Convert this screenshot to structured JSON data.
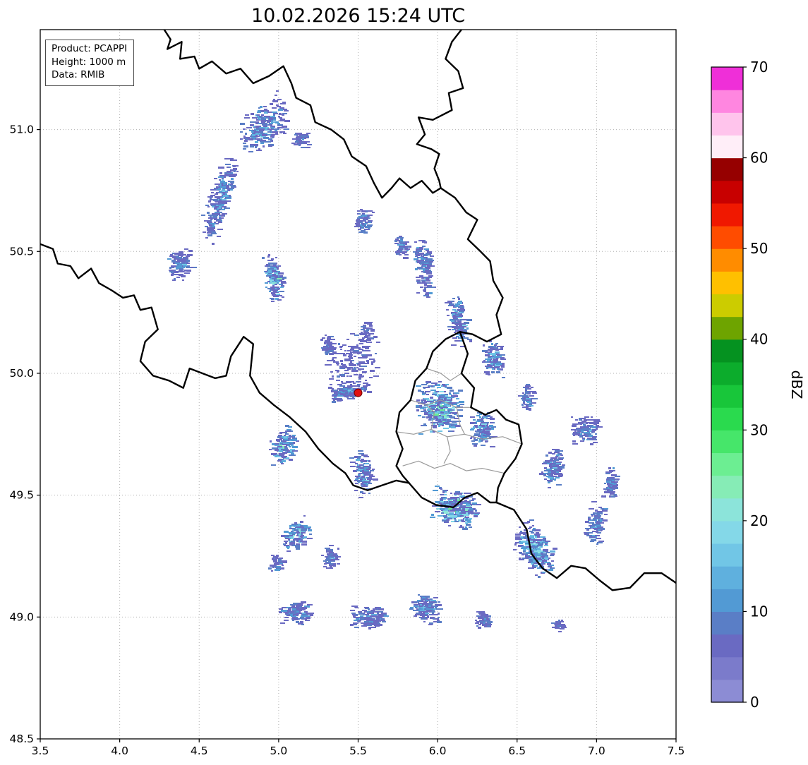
{
  "title": "10.02.2026 15:24 UTC",
  "info_box": {
    "product": "Product: PCAPPI",
    "height": "Height: 1000 m",
    "data": "Data: RMIB"
  },
  "chart_data": {
    "type": "heatmap",
    "title": "10.02.2026 15:24 UTC",
    "xlabel": "",
    "ylabel": "",
    "grid": true,
    "x_axis": {
      "ticks": [
        3.5,
        4.0,
        4.5,
        5.0,
        5.5,
        6.0,
        6.5,
        7.0,
        7.5
      ],
      "range": [
        3.5,
        7.5
      ]
    },
    "y_axis": {
      "ticks": [
        48.5,
        49.0,
        49.5,
        50.0,
        50.5,
        51.0
      ],
      "range": [
        48.5,
        51.41
      ]
    },
    "colorbar": {
      "label": "dBZ",
      "ticks": [
        0,
        10,
        20,
        30,
        40,
        50,
        60,
        70
      ],
      "vmin": 0,
      "vmax": 70,
      "step": 2.5,
      "colors": [
        "#8c8cd4",
        "#7b7bcb",
        "#6a6ac2",
        "#5a7ec6",
        "#529ad4",
        "#5fb0de",
        "#71c6e6",
        "#84d8e8",
        "#8ce4da",
        "#86ecb6",
        "#6cee92",
        "#46e66a",
        "#2ada4e",
        "#18c63a",
        "#0cac2c",
        "#059220",
        "#6ea400",
        "#cccc00",
        "#ffc000",
        "#ff8c00",
        "#ff4c00",
        "#f01800",
        "#c80000",
        "#960000",
        "#ffeef8",
        "#ffc4ec",
        "#ff86e0",
        "#ef2fd8"
      ]
    },
    "radar_site": {
      "lon": 5.5,
      "lat": 49.92,
      "marker_color": "#e01010"
    },
    "borders": {
      "country": [
        [
          [
            3.5,
            50.53
          ],
          [
            3.58,
            50.51
          ],
          [
            3.61,
            50.45
          ],
          [
            3.69,
            50.44
          ],
          [
            3.74,
            50.39
          ],
          [
            3.82,
            50.43
          ],
          [
            3.87,
            50.37
          ],
          [
            3.95,
            50.34
          ],
          [
            4.02,
            50.31
          ],
          [
            4.09,
            50.32
          ],
          [
            4.13,
            50.26
          ],
          [
            4.2,
            50.27
          ],
          [
            4.24,
            50.18
          ],
          [
            4.16,
            50.13
          ],
          [
            4.13,
            50.05
          ],
          [
            4.21,
            49.99
          ],
          [
            4.31,
            49.97
          ],
          [
            4.4,
            49.94
          ],
          [
            4.44,
            50.02
          ],
          [
            4.52,
            50.0
          ],
          [
            4.6,
            49.98
          ],
          [
            4.67,
            49.99
          ],
          [
            4.7,
            50.07
          ],
          [
            4.78,
            50.15
          ],
          [
            4.84,
            50.12
          ],
          [
            4.82,
            49.99
          ],
          [
            4.88,
            49.92
          ],
          [
            4.97,
            49.87
          ],
          [
            5.07,
            49.82
          ],
          [
            5.17,
            49.76
          ],
          [
            5.25,
            49.69
          ],
          [
            5.34,
            49.63
          ],
          [
            5.42,
            49.59
          ],
          [
            5.47,
            49.54
          ],
          [
            5.56,
            49.52
          ],
          [
            5.65,
            49.54
          ],
          [
            5.74,
            49.56
          ],
          [
            5.82,
            49.55
          ]
        ],
        [
          [
            5.82,
            49.55
          ],
          [
            5.9,
            49.49
          ],
          [
            5.99,
            49.46
          ],
          [
            6.1,
            49.45
          ],
          [
            6.17,
            49.49
          ],
          [
            6.25,
            49.51
          ],
          [
            6.33,
            49.47
          ],
          [
            6.37,
            49.47
          ]
        ],
        [
          [
            6.37,
            49.47
          ],
          [
            6.48,
            49.44
          ],
          [
            6.56,
            49.36
          ],
          [
            6.59,
            49.26
          ],
          [
            6.66,
            49.2
          ],
          [
            6.75,
            49.16
          ],
          [
            6.84,
            49.21
          ],
          [
            6.93,
            49.2
          ],
          [
            7.02,
            49.15
          ],
          [
            7.1,
            49.11
          ],
          [
            7.21,
            49.12
          ],
          [
            7.3,
            49.18
          ],
          [
            7.41,
            49.18
          ],
          [
            7.5,
            49.14
          ]
        ],
        [
          [
            4.28,
            51.41
          ],
          [
            4.32,
            51.37
          ],
          [
            4.3,
            51.33
          ],
          [
            4.39,
            51.36
          ],
          [
            4.38,
            51.29
          ],
          [
            4.47,
            51.3
          ],
          [
            4.5,
            51.25
          ],
          [
            4.58,
            51.28
          ],
          [
            4.67,
            51.23
          ],
          [
            4.76,
            51.25
          ],
          [
            4.84,
            51.19
          ],
          [
            4.94,
            51.22
          ],
          [
            5.03,
            51.26
          ],
          [
            5.08,
            51.19
          ],
          [
            5.11,
            51.13
          ],
          [
            5.2,
            51.1
          ],
          [
            5.23,
            51.03
          ],
          [
            5.33,
            51.0
          ],
          [
            5.41,
            50.96
          ],
          [
            5.46,
            50.89
          ],
          [
            5.55,
            50.85
          ],
          [
            5.6,
            50.78
          ],
          [
            5.65,
            50.72
          ],
          [
            5.71,
            50.76
          ],
          [
            5.76,
            50.8
          ],
          [
            5.83,
            50.76
          ],
          [
            5.9,
            50.79
          ],
          [
            5.97,
            50.74
          ],
          [
            6.02,
            50.76
          ]
        ],
        [
          [
            6.15,
            51.41
          ],
          [
            6.09,
            51.36
          ],
          [
            6.05,
            51.29
          ],
          [
            6.13,
            51.24
          ],
          [
            6.16,
            51.17
          ],
          [
            6.07,
            51.15
          ],
          [
            6.09,
            51.08
          ],
          [
            5.97,
            51.04
          ],
          [
            5.88,
            51.05
          ],
          [
            5.92,
            50.98
          ],
          [
            5.87,
            50.94
          ],
          [
            5.96,
            50.92
          ],
          [
            6.01,
            50.9
          ],
          [
            5.98,
            50.84
          ],
          [
            6.01,
            50.79
          ],
          [
            6.02,
            50.76
          ]
        ],
        [
          [
            6.02,
            50.76
          ],
          [
            6.11,
            50.72
          ],
          [
            6.18,
            50.66
          ],
          [
            6.25,
            50.63
          ],
          [
            6.19,
            50.55
          ],
          [
            6.27,
            50.5
          ],
          [
            6.33,
            50.46
          ],
          [
            6.35,
            50.38
          ],
          [
            6.41,
            50.31
          ],
          [
            6.37,
            50.24
          ],
          [
            6.4,
            50.16
          ],
          [
            6.31,
            50.13
          ],
          [
            6.22,
            50.16
          ],
          [
            6.14,
            50.17
          ]
        ],
        [
          [
            6.14,
            50.17
          ],
          [
            6.05,
            50.14
          ],
          [
            5.97,
            50.09
          ],
          [
            5.93,
            50.02
          ],
          [
            5.86,
            49.97
          ],
          [
            5.83,
            49.89
          ],
          [
            5.76,
            49.84
          ],
          [
            5.74,
            49.76
          ],
          [
            5.78,
            49.69
          ],
          [
            5.74,
            49.62
          ],
          [
            5.78,
            49.58
          ],
          [
            5.82,
            49.55
          ]
        ],
        [
          [
            6.14,
            50.17
          ],
          [
            6.19,
            50.08
          ],
          [
            6.15,
            50.0
          ],
          [
            6.23,
            49.94
          ],
          [
            6.21,
            49.86
          ],
          [
            6.3,
            49.83
          ],
          [
            6.37,
            49.85
          ],
          [
            6.43,
            49.81
          ],
          [
            6.51,
            49.79
          ],
          [
            6.53,
            49.71
          ],
          [
            6.49,
            49.65
          ],
          [
            6.42,
            49.59
          ],
          [
            6.38,
            49.53
          ],
          [
            6.37,
            49.47
          ]
        ]
      ],
      "province": [
        [
          [
            5.83,
            49.89
          ],
          [
            5.93,
            49.87
          ],
          [
            6.02,
            49.89
          ],
          [
            6.12,
            49.86
          ],
          [
            6.21,
            49.86
          ]
        ],
        [
          [
            5.74,
            49.76
          ],
          [
            5.85,
            49.75
          ],
          [
            5.96,
            49.77
          ],
          [
            6.06,
            49.74
          ],
          [
            6.17,
            49.75
          ],
          [
            6.28,
            49.73
          ],
          [
            6.41,
            49.74
          ],
          [
            6.53,
            49.71
          ]
        ],
        [
          [
            5.78,
            49.62
          ],
          [
            5.88,
            49.64
          ],
          [
            5.98,
            49.61
          ],
          [
            6.08,
            49.63
          ],
          [
            6.18,
            49.6
          ],
          [
            6.28,
            49.61
          ],
          [
            6.42,
            49.59
          ]
        ],
        [
          [
            6.06,
            49.74
          ],
          [
            6.08,
            49.68
          ],
          [
            6.04,
            49.63
          ]
        ],
        [
          [
            5.96,
            49.77
          ],
          [
            5.98,
            49.84
          ],
          [
            5.93,
            49.87
          ]
        ],
        [
          [
            6.12,
            49.86
          ],
          [
            6.14,
            49.79
          ],
          [
            6.17,
            49.75
          ]
        ],
        [
          [
            5.93,
            50.02
          ],
          [
            6.02,
            50.0
          ],
          [
            6.08,
            49.97
          ],
          [
            6.15,
            50.0
          ]
        ]
      ]
    },
    "precip_clusters": [
      {
        "lon": 4.9,
        "lat": 51.02,
        "w": 0.16,
        "h": 0.1,
        "n": 240,
        "max": 20,
        "a": 25
      },
      {
        "lon": 5.13,
        "lat": 50.96,
        "w": 0.06,
        "h": 0.04,
        "n": 50,
        "max": 12,
        "a": 0
      },
      {
        "lon": 4.62,
        "lat": 50.72,
        "w": 0.2,
        "h": 0.07,
        "n": 260,
        "max": 18,
        "a": 62
      },
      {
        "lon": 4.37,
        "lat": 50.45,
        "w": 0.08,
        "h": 0.07,
        "n": 110,
        "max": 15,
        "a": 0
      },
      {
        "lon": 4.96,
        "lat": 50.4,
        "w": 0.06,
        "h": 0.11,
        "n": 150,
        "max": 28,
        "a": 15
      },
      {
        "lon": 5.53,
        "lat": 50.63,
        "w": 0.06,
        "h": 0.06,
        "n": 80,
        "max": 14,
        "a": 0
      },
      {
        "lon": 5.76,
        "lat": 50.52,
        "w": 0.05,
        "h": 0.05,
        "n": 60,
        "max": 16,
        "a": 0
      },
      {
        "lon": 5.9,
        "lat": 50.44,
        "w": 0.06,
        "h": 0.13,
        "n": 150,
        "max": 18,
        "a": 10
      },
      {
        "lon": 6.12,
        "lat": 50.22,
        "w": 0.07,
        "h": 0.11,
        "n": 150,
        "max": 22,
        "a": 15
      },
      {
        "lon": 6.34,
        "lat": 50.06,
        "w": 0.07,
        "h": 0.08,
        "n": 120,
        "max": 20,
        "a": 0
      },
      {
        "lon": 5.45,
        "lat": 50.05,
        "w": 0.2,
        "h": 0.12,
        "n": 160,
        "max": 9,
        "a": 0
      },
      {
        "lon": 5.43,
        "lat": 49.93,
        "w": 0.13,
        "h": 0.035,
        "n": 150,
        "max": 16,
        "a": 8
      },
      {
        "lon": 6.0,
        "lat": 49.86,
        "w": 0.15,
        "h": 0.12,
        "n": 340,
        "max": 30,
        "a": 0
      },
      {
        "lon": 6.27,
        "lat": 49.77,
        "w": 0.08,
        "h": 0.08,
        "n": 150,
        "max": 22,
        "a": 0
      },
      {
        "lon": 6.55,
        "lat": 49.9,
        "w": 0.05,
        "h": 0.06,
        "n": 70,
        "max": 15,
        "a": 0
      },
      {
        "lon": 6.92,
        "lat": 49.77,
        "w": 0.09,
        "h": 0.06,
        "n": 120,
        "max": 16,
        "a": 0
      },
      {
        "lon": 6.72,
        "lat": 49.62,
        "w": 0.07,
        "h": 0.09,
        "n": 130,
        "max": 18,
        "a": -30
      },
      {
        "lon": 5.02,
        "lat": 49.7,
        "w": 0.1,
        "h": 0.07,
        "n": 140,
        "max": 25,
        "a": 30
      },
      {
        "lon": 5.52,
        "lat": 49.6,
        "w": 0.07,
        "h": 0.1,
        "n": 140,
        "max": 20,
        "a": 20
      },
      {
        "lon": 6.1,
        "lat": 49.45,
        "w": 0.15,
        "h": 0.08,
        "n": 320,
        "max": 35,
        "a": -10
      },
      {
        "lon": 6.6,
        "lat": 49.28,
        "w": 0.14,
        "h": 0.09,
        "n": 280,
        "max": 25,
        "a": -35
      },
      {
        "lon": 6.98,
        "lat": 49.38,
        "w": 0.06,
        "h": 0.1,
        "n": 110,
        "max": 16,
        "a": -20
      },
      {
        "lon": 7.08,
        "lat": 49.55,
        "w": 0.05,
        "h": 0.07,
        "n": 80,
        "max": 14,
        "a": 0
      },
      {
        "lon": 5.1,
        "lat": 49.34,
        "w": 0.1,
        "h": 0.06,
        "n": 130,
        "max": 26,
        "a": 25
      },
      {
        "lon": 5.32,
        "lat": 49.25,
        "w": 0.06,
        "h": 0.05,
        "n": 70,
        "max": 14,
        "a": 0
      },
      {
        "lon": 4.98,
        "lat": 49.22,
        "w": 0.05,
        "h": 0.04,
        "n": 50,
        "max": 12,
        "a": 0
      },
      {
        "lon": 5.1,
        "lat": 49.02,
        "w": 0.11,
        "h": 0.05,
        "n": 130,
        "max": 14,
        "a": 0
      },
      {
        "lon": 5.55,
        "lat": 49.0,
        "w": 0.12,
        "h": 0.05,
        "n": 150,
        "max": 16,
        "a": 0
      },
      {
        "lon": 5.92,
        "lat": 49.04,
        "w": 0.1,
        "h": 0.06,
        "n": 150,
        "max": 18,
        "a": -15
      },
      {
        "lon": 6.28,
        "lat": 48.99,
        "w": 0.06,
        "h": 0.04,
        "n": 60,
        "max": 12,
        "a": 0
      },
      {
        "lon": 6.75,
        "lat": 48.97,
        "w": 0.04,
        "h": 0.03,
        "n": 30,
        "max": 10,
        "a": 0
      },
      {
        "lon": 5.55,
        "lat": 50.17,
        "w": 0.05,
        "h": 0.05,
        "n": 50,
        "max": 10,
        "a": 0
      },
      {
        "lon": 5.3,
        "lat": 50.12,
        "w": 0.05,
        "h": 0.04,
        "n": 40,
        "max": 9,
        "a": 0
      }
    ]
  }
}
